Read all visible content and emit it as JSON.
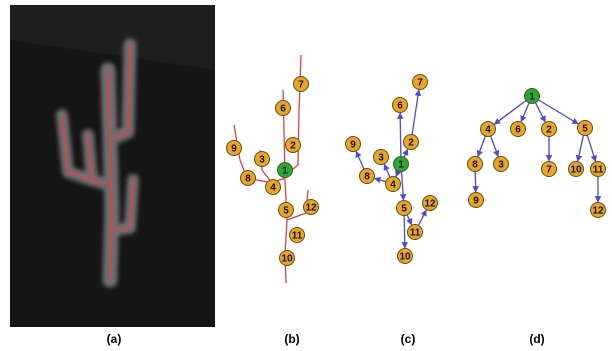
{
  "panels": [
    {
      "id": "a",
      "label": "(a)"
    },
    {
      "id": "b",
      "label": "(b)"
    },
    {
      "id": "c",
      "label": "(c)"
    },
    {
      "id": "d",
      "label": "(d)"
    }
  ],
  "colors": {
    "photo_background": "#151515",
    "cactus_glow": "#6e6e6e",
    "skeleton_red": "#e0404a",
    "node_fill": "#e8a628",
    "node_stroke": "#6b4a10",
    "root_fill": "#22aa3a",
    "edge_blue": "#4b4bcf"
  },
  "graph": {
    "root": "1",
    "nodes": [
      "1",
      "2",
      "3",
      "4",
      "5",
      "6",
      "7",
      "8",
      "9",
      "10",
      "11",
      "12"
    ],
    "tree_edges": [
      [
        "1",
        "4"
      ],
      [
        "1",
        "6"
      ],
      [
        "1",
        "2"
      ],
      [
        "1",
        "5"
      ],
      [
        "4",
        "8"
      ],
      [
        "4",
        "3"
      ],
      [
        "8",
        "9"
      ],
      [
        "2",
        "7"
      ],
      [
        "5",
        "10"
      ],
      [
        "5",
        "11"
      ],
      [
        "11",
        "12"
      ]
    ]
  }
}
